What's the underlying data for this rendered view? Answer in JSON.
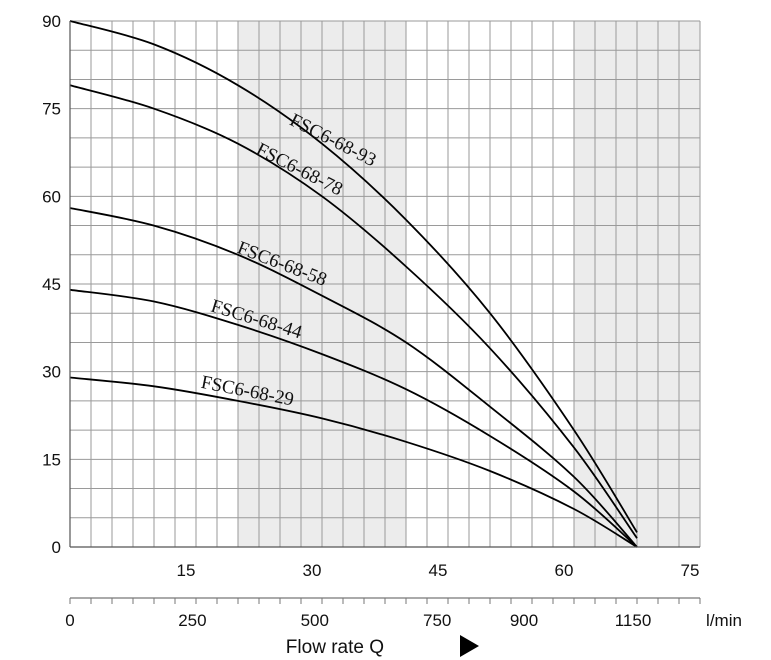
{
  "chart_data": {
    "type": "line",
    "xlabel": "Flow rate Q",
    "ylabel": "",
    "ylim": [
      0,
      90
    ],
    "xlim_m3h": [
      0,
      75
    ],
    "y_ticks": [
      "0",
      "15",
      "30",
      "45",
      "60",
      "75",
      "90"
    ],
    "x_ticks_top": [
      "15",
      "30",
      "45",
      "60",
      "75"
    ],
    "x_ticks_top_values": [
      15,
      30,
      45,
      60,
      75
    ],
    "x_ticks_bottom": [
      "0",
      "250",
      "500",
      "750",
      "900",
      "1150"
    ],
    "x_ticks_bottom_values": [
      0,
      250,
      500,
      750,
      900,
      1150
    ],
    "x_unit_bottom": "l/min",
    "shaded_ranges_m3h": [
      [
        20,
        40
      ],
      [
        60,
        75
      ]
    ],
    "grid": true,
    "series": [
      {
        "name": "FSC6-68-93",
        "x": [
          0,
          10,
          20,
          30,
          40,
          50,
          60,
          67.5
        ],
        "y": [
          90,
          86,
          79,
          69,
          56,
          40,
          20,
          2.5
        ]
      },
      {
        "name": "FSC6-68-78",
        "x": [
          0,
          10,
          20,
          30,
          40,
          50,
          60,
          67.5
        ],
        "y": [
          79,
          75,
          69,
          60,
          48,
          34,
          17,
          1.5
        ]
      },
      {
        "name": "FSC6-68-58",
        "x": [
          0,
          10,
          20,
          30,
          40,
          50,
          60,
          67.5
        ],
        "y": [
          58,
          55,
          50,
          43,
          35,
          24,
          12,
          0
        ]
      },
      {
        "name": "FSC6-68-44",
        "x": [
          0,
          10,
          20,
          30,
          40,
          50,
          60,
          67.5
        ],
        "y": [
          44,
          42,
          38,
          33,
          27,
          19,
          9.5,
          0
        ]
      },
      {
        "name": "FSC6-68-29",
        "x": [
          0,
          10,
          20,
          30,
          40,
          50,
          60,
          67.5
        ],
        "y": [
          29,
          27.5,
          25,
          22,
          18,
          13,
          6.5,
          0
        ]
      }
    ]
  }
}
